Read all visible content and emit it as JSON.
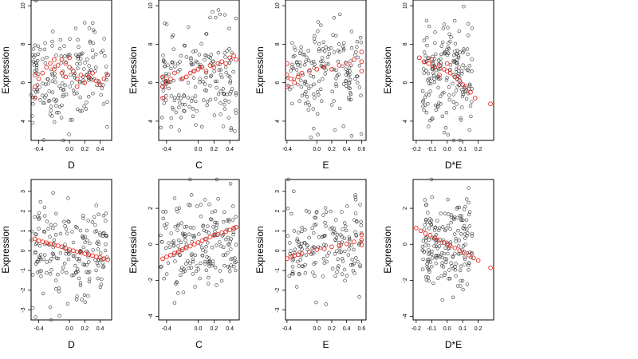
{
  "chart_data": [
    {
      "type": "scatter",
      "xlabel": "D",
      "ylabel": "Expression",
      "xticks": [
        "-0.4",
        "0.0",
        "0.2",
        "0.4"
      ],
      "xtick_values": [
        -0.4,
        0.0,
        0.2,
        0.4
      ],
      "yticks": [
        "4",
        "6",
        "8",
        "10"
      ],
      "ytick_values": [
        4,
        6,
        8,
        10
      ],
      "xlim": [
        -0.5,
        0.55
      ],
      "ylim": [
        3.0,
        10.3
      ],
      "red_points": [
        [
          -0.45,
          5.8
        ],
        [
          -0.45,
          5.2
        ],
        [
          -0.45,
          6.4
        ],
        [
          -0.4,
          6.2
        ],
        [
          -0.35,
          6.5
        ],
        [
          -0.3,
          6.8
        ],
        [
          -0.25,
          7.0
        ],
        [
          -0.2,
          6.7
        ],
        [
          -0.2,
          7.2
        ],
        [
          -0.15,
          6.9
        ],
        [
          -0.1,
          7.2
        ],
        [
          -0.1,
          6.5
        ],
        [
          -0.05,
          7.0
        ],
        [
          -0.05,
          6.3
        ],
        [
          0.0,
          6.8
        ],
        [
          0.0,
          7.3
        ],
        [
          0.05,
          6.6
        ],
        [
          0.1,
          6.2
        ],
        [
          0.1,
          5.8
        ],
        [
          0.15,
          6.4
        ],
        [
          0.2,
          6.0
        ],
        [
          0.25,
          6.3
        ],
        [
          0.3,
          6.5
        ],
        [
          0.35,
          6.1
        ],
        [
          0.4,
          5.9
        ],
        [
          0.45,
          6.2
        ],
        [
          0.5,
          6.4
        ]
      ],
      "black_seed": 11,
      "black_count": 190,
      "black_center": [
        0.0,
        6.3
      ],
      "black_spread": [
        0.5,
        1.3
      ]
    },
    {
      "type": "scatter",
      "xlabel": "C",
      "ylabel": "Expression",
      "xticks": [
        "-0.4",
        "0.0",
        "0.2",
        "0.4"
      ],
      "xtick_values": [
        -0.4,
        0.0,
        0.2,
        0.4
      ],
      "yticks": [
        "4",
        "6",
        "8",
        "10"
      ],
      "ytick_values": [
        4,
        6,
        8,
        10
      ],
      "xlim": [
        -0.5,
        0.52
      ],
      "ylim": [
        3.0,
        10.3
      ],
      "red_points": [
        [
          -0.45,
          5.2
        ],
        [
          -0.45,
          5.8
        ],
        [
          -0.45,
          6.3
        ],
        [
          -0.4,
          6.0
        ],
        [
          -0.35,
          6.2
        ],
        [
          -0.3,
          6.5
        ],
        [
          -0.2,
          6.2
        ],
        [
          -0.15,
          6.3
        ],
        [
          -0.1,
          6.5
        ],
        [
          -0.05,
          6.6
        ],
        [
          0.0,
          6.7
        ],
        [
          0.05,
          6.8
        ],
        [
          0.1,
          6.6
        ],
        [
          0.15,
          6.9
        ],
        [
          0.2,
          6.8
        ],
        [
          0.25,
          7.0
        ],
        [
          0.3,
          7.1
        ],
        [
          0.35,
          7.0
        ],
        [
          0.4,
          7.3
        ],
        [
          0.45,
          7.4
        ],
        [
          0.48,
          7.2
        ]
      ],
      "black_seed": 23,
      "black_count": 190,
      "black_center": [
        0.0,
        6.4
      ],
      "black_spread": [
        0.48,
        1.3
      ]
    },
    {
      "type": "scatter",
      "xlabel": "E",
      "ylabel": "Expression",
      "xticks": [
        "-0.4",
        "0.0",
        "0.2",
        "0.4",
        "0.6"
      ],
      "xtick_values": [
        -0.4,
        0.0,
        0.2,
        0.4,
        0.6
      ],
      "yticks": [
        "4",
        "6",
        "8",
        "10"
      ],
      "ytick_values": [
        4,
        6,
        8,
        10
      ],
      "xlim": [
        -0.42,
        0.66
      ],
      "ylim": [
        3.0,
        10.3
      ],
      "red_points": [
        [
          -0.4,
          5.8
        ],
        [
          -0.4,
          6.4
        ],
        [
          -0.4,
          7.0
        ],
        [
          -0.35,
          6.2
        ],
        [
          -0.3,
          6.0
        ],
        [
          -0.25,
          6.3
        ],
        [
          -0.2,
          6.5
        ],
        [
          -0.1,
          6.6
        ],
        [
          0.0,
          6.7
        ],
        [
          0.1,
          6.8
        ],
        [
          0.2,
          6.7
        ],
        [
          0.3,
          6.9
        ],
        [
          0.4,
          7.0
        ],
        [
          0.5,
          7.2
        ],
        [
          0.6,
          7.1
        ],
        [
          0.6,
          7.6
        ],
        [
          0.6,
          6.6
        ]
      ],
      "black_seed": 37,
      "black_count": 170,
      "black_center": [
        0.1,
        6.4
      ],
      "black_spread": [
        0.5,
        1.3
      ]
    },
    {
      "type": "scatter",
      "xlabel": "D*E",
      "ylabel": "Expression",
      "xticks": [
        "-0.2",
        "-0.1",
        "0.0",
        "0.1",
        "0.2"
      ],
      "xtick_values": [
        -0.2,
        -0.1,
        0.0,
        0.1,
        0.2
      ],
      "yticks": [
        "4",
        "6",
        "8",
        "10"
      ],
      "ytick_values": [
        4,
        6,
        8,
        10
      ],
      "xlim": [
        -0.22,
        0.3
      ],
      "ylim": [
        3.0,
        10.3
      ],
      "red_points": [
        [
          -0.18,
          7.3
        ],
        [
          -0.15,
          7.1
        ],
        [
          -0.12,
          7.0
        ],
        [
          -0.1,
          7.2
        ],
        [
          -0.08,
          6.8
        ],
        [
          -0.05,
          6.9
        ],
        [
          -0.05,
          6.4
        ],
        [
          -0.02,
          6.7
        ],
        [
          0.0,
          6.6
        ],
        [
          0.0,
          7.0
        ],
        [
          0.02,
          6.5
        ],
        [
          0.05,
          6.3
        ],
        [
          0.08,
          6.1
        ],
        [
          0.1,
          5.9
        ],
        [
          0.12,
          5.8
        ],
        [
          0.15,
          5.5
        ],
        [
          0.18,
          5.2
        ],
        [
          0.28,
          4.9
        ]
      ],
      "black_seed": 53,
      "black_count": 190,
      "black_center": [
        0.0,
        6.4
      ],
      "black_spread": [
        0.16,
        1.3
      ]
    },
    {
      "type": "scatter",
      "xlabel": "D",
      "ylabel": "Expression",
      "xticks": [
        "-0.4",
        "0.0",
        "0.2",
        "0.4"
      ],
      "xtick_values": [
        -0.4,
        0.0,
        0.2,
        0.4
      ],
      "yticks": [
        "-3",
        "-2",
        "-1",
        "0",
        "1",
        "2",
        "3"
      ],
      "ytick_values": [
        -3,
        -2,
        -1,
        0,
        1,
        2,
        3
      ],
      "xlim": [
        -0.5,
        0.55
      ],
      "ylim": [
        -3.5,
        3.6
      ],
      "red_points": [
        [
          -0.45,
          0.6
        ],
        [
          -0.4,
          0.5
        ],
        [
          -0.35,
          0.45
        ],
        [
          -0.3,
          0.4
        ],
        [
          -0.25,
          0.35
        ],
        [
          -0.2,
          0.3
        ],
        [
          -0.15,
          0.25
        ],
        [
          -0.1,
          0.2
        ],
        [
          -0.05,
          0.12
        ],
        [
          0.0,
          0.05
        ],
        [
          0.05,
          0.0
        ],
        [
          0.1,
          -0.05
        ],
        [
          0.15,
          -0.1
        ],
        [
          0.2,
          -0.15
        ],
        [
          0.25,
          -0.2
        ],
        [
          0.3,
          -0.25
        ],
        [
          0.35,
          -0.3
        ],
        [
          0.4,
          -0.35
        ],
        [
          0.45,
          -0.4
        ],
        [
          0.5,
          -0.45
        ]
      ],
      "black_seed": 71,
      "black_count": 190,
      "black_center": [
        0.0,
        0.0
      ],
      "black_spread": [
        0.5,
        1.3
      ]
    },
    {
      "type": "scatter",
      "xlabel": "C",
      "ylabel": "Expression",
      "xticks": [
        "-0.4",
        "0.0",
        "0.2",
        "0.4"
      ],
      "xtick_values": [
        -0.4,
        0.0,
        0.2,
        0.4
      ],
      "yticks": [
        "-4",
        "-2",
        "0",
        "2"
      ],
      "ytick_values": [
        -4,
        -2,
        0,
        2
      ],
      "xlim": [
        -0.5,
        0.52
      ],
      "ylim": [
        -4.2,
        3.6
      ],
      "red_points": [
        [
          -0.45,
          -0.8
        ],
        [
          -0.4,
          -0.7
        ],
        [
          -0.35,
          -0.6
        ],
        [
          -0.3,
          -0.5
        ],
        [
          -0.25,
          -0.4
        ],
        [
          -0.2,
          -0.3
        ],
        [
          -0.15,
          -0.2
        ],
        [
          -0.1,
          -0.1
        ],
        [
          -0.05,
          0.0
        ],
        [
          0.0,
          0.1
        ],
        [
          0.05,
          0.2
        ],
        [
          0.1,
          0.3
        ],
        [
          0.15,
          0.4
        ],
        [
          0.2,
          0.5
        ],
        [
          0.25,
          0.55
        ],
        [
          0.3,
          0.65
        ],
        [
          0.35,
          0.7
        ],
        [
          0.4,
          0.8
        ],
        [
          0.45,
          0.9
        ],
        [
          0.48,
          0.95
        ]
      ],
      "black_seed": 89,
      "black_count": 190,
      "black_center": [
        0.0,
        0.0
      ],
      "black_spread": [
        0.48,
        1.3
      ]
    },
    {
      "type": "scatter",
      "xlabel": "E",
      "ylabel": "Expression",
      "xticks": [
        "-0.4",
        "0.0",
        "0.2",
        "0.4",
        "0.6"
      ],
      "xtick_values": [
        -0.4,
        0.0,
        0.2,
        0.4,
        0.6
      ],
      "yticks": [
        "-3",
        "-2",
        "-1",
        "0",
        "1",
        "2",
        "3"
      ],
      "ytick_values": [
        -3,
        -2,
        -1,
        0,
        1,
        2,
        3
      ],
      "xlim": [
        -0.42,
        0.66
      ],
      "ylim": [
        -3.5,
        3.6
      ],
      "red_points": [
        [
          -0.4,
          -0.4
        ],
        [
          -0.35,
          -0.3
        ],
        [
          -0.3,
          -0.25
        ],
        [
          -0.25,
          -0.2
        ],
        [
          -0.2,
          -0.15
        ],
        [
          -0.1,
          -0.05
        ],
        [
          0.0,
          0.05
        ],
        [
          0.1,
          0.1
        ],
        [
          0.2,
          0.2
        ],
        [
          0.3,
          0.25
        ],
        [
          0.4,
          0.35
        ],
        [
          0.5,
          0.45
        ],
        [
          0.6,
          0.55
        ],
        [
          0.6,
          0.8
        ],
        [
          0.6,
          0.3
        ]
      ],
      "black_seed": 97,
      "black_count": 170,
      "black_center": [
        0.1,
        0.0
      ],
      "black_spread": [
        0.5,
        1.3
      ]
    },
    {
      "type": "scatter",
      "xlabel": "D*E",
      "ylabel": "Expression",
      "xticks": [
        "-0.2",
        "-0.1",
        "0.0",
        "0.1",
        "0.2"
      ],
      "xtick_values": [
        -0.2,
        -0.1,
        0.0,
        0.1,
        0.2
      ],
      "yticks": [
        "-4",
        "-2",
        "0",
        "2"
      ],
      "ytick_values": [
        -4,
        -2,
        0,
        2
      ],
      "xlim": [
        -0.22,
        0.3
      ],
      "ylim": [
        -4.2,
        3.6
      ],
      "red_points": [
        [
          -0.2,
          0.9
        ],
        [
          -0.17,
          0.75
        ],
        [
          -0.14,
          0.6
        ],
        [
          -0.11,
          0.5
        ],
        [
          -0.08,
          0.35
        ],
        [
          -0.05,
          0.25
        ],
        [
          -0.02,
          0.1
        ],
        [
          0.0,
          0.0
        ],
        [
          0.02,
          -0.1
        ],
        [
          0.05,
          -0.2
        ],
        [
          0.08,
          -0.35
        ],
        [
          0.11,
          -0.45
        ],
        [
          0.14,
          -0.6
        ],
        [
          0.17,
          -0.75
        ],
        [
          0.2,
          -0.9
        ],
        [
          0.28,
          -1.3
        ]
      ],
      "black_seed": 113,
      "black_count": 190,
      "black_center": [
        0.0,
        0.0
      ],
      "black_spread": [
        0.16,
        1.3
      ]
    }
  ]
}
